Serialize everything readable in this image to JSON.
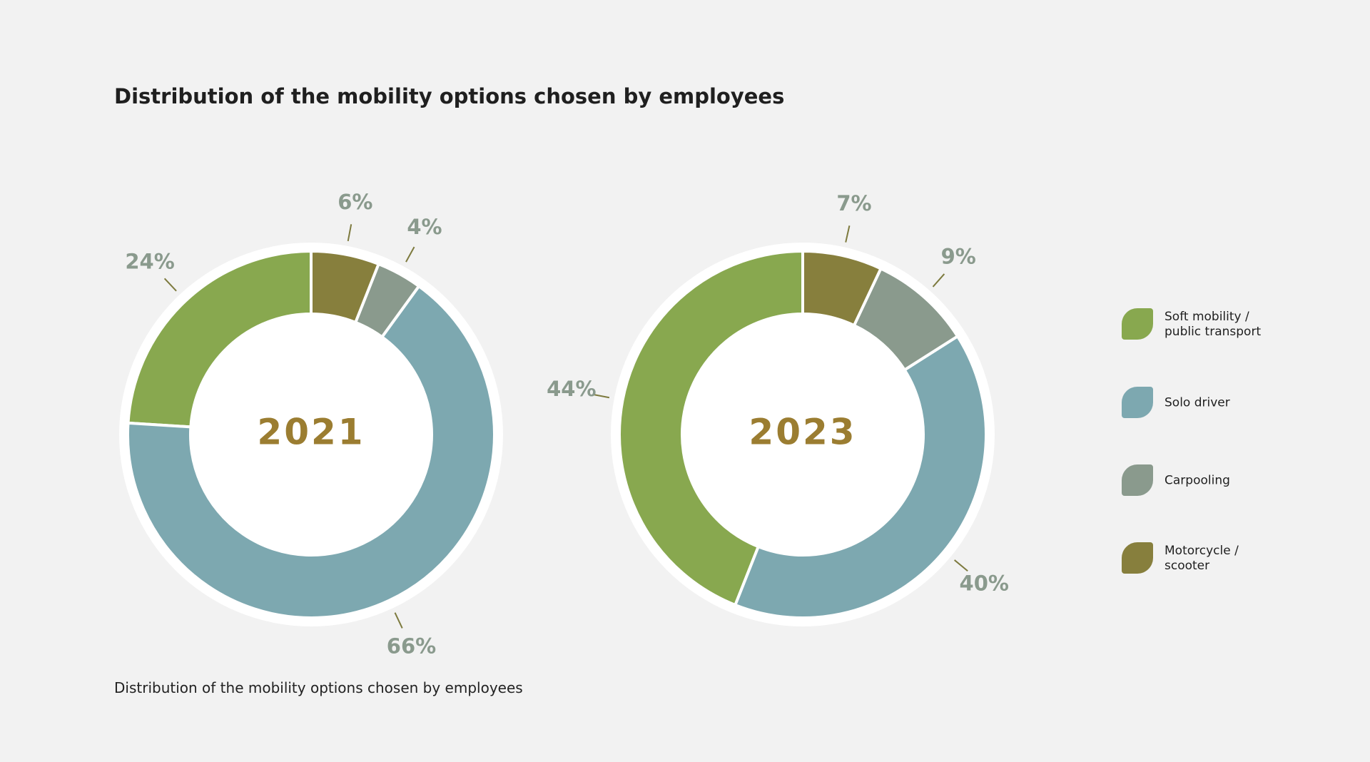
{
  "title": "Distribution of the mobility options chosen by employees",
  "caption": "Distribution of the mobility options chosen by employees",
  "chart_data": [
    {
      "type": "donut",
      "center_label": "2021",
      "categories": [
        "Soft mobility / public transport",
        "Solo driver",
        "Carpooling",
        "Motorcycle / scooter"
      ],
      "colors": [
        "#88a84f",
        "#7da8b0",
        "#8a9a8d",
        "#877f3d"
      ],
      "values": [
        24,
        66,
        4,
        6
      ],
      "value_labels": [
        "24%",
        "66%",
        "4%",
        "6%"
      ]
    },
    {
      "type": "donut",
      "center_label": "2023",
      "categories": [
        "Soft mobility / public transport",
        "Solo driver",
        "Carpooling",
        "Motorcycle / scooter"
      ],
      "colors": [
        "#88a84f",
        "#7da8b0",
        "#8a9a8d",
        "#877f3d"
      ],
      "values": [
        44,
        40,
        9,
        7
      ],
      "value_labels": [
        "44%",
        "40%",
        "9%",
        "7%"
      ]
    }
  ]
}
